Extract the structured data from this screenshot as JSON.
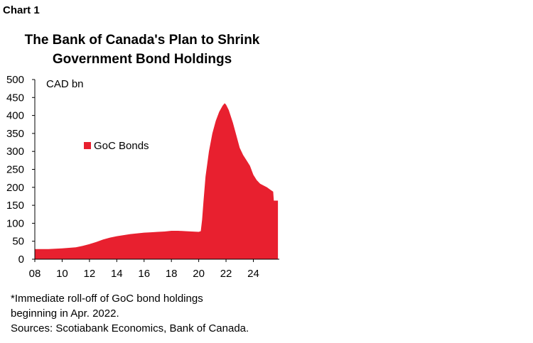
{
  "chart_label": "Chart 1",
  "chart_data": {
    "type": "area",
    "title": [
      "The Bank of Canada's Plan to Shrink",
      "Government Bond Holdings"
    ],
    "unit_label": "CAD bn",
    "xlabel": "",
    "ylabel": "",
    "ylim": [
      0,
      500
    ],
    "yticks": [
      0,
      50,
      100,
      150,
      200,
      250,
      300,
      350,
      400,
      450,
      500
    ],
    "xlim": [
      2008,
      2025.9
    ],
    "xticks": [
      "08",
      "10",
      "12",
      "14",
      "16",
      "18",
      "20",
      "22",
      "24"
    ],
    "xtick_values": [
      2008,
      2010,
      2012,
      2014,
      2016,
      2018,
      2020,
      2022,
      2024
    ],
    "grid": false,
    "legend": {
      "position": "left-middle",
      "entries": [
        "GoC Bonds"
      ]
    },
    "series": [
      {
        "name": "GoC Bonds",
        "color": "#e8202f",
        "x": [
          2008.0,
          2009.0,
          2010.0,
          2011.0,
          2011.5,
          2012.0,
          2012.5,
          2013.0,
          2013.5,
          2014.0,
          2014.5,
          2015.0,
          2015.5,
          2016.0,
          2016.5,
          2017.0,
          2017.5,
          2018.0,
          2018.5,
          2019.0,
          2019.5,
          2020.0,
          2020.15,
          2020.25,
          2020.35,
          2020.5,
          2020.75,
          2021.0,
          2021.25,
          2021.5,
          2021.75,
          2021.9,
          2022.0,
          2022.2,
          2022.5,
          2022.75,
          2023.0,
          2023.25,
          2023.5,
          2023.75,
          2024.0,
          2024.25,
          2024.5,
          2024.75,
          2025.0,
          2025.25,
          2025.45,
          2025.5,
          2025.8
        ],
        "y": [
          28,
          28,
          30,
          33,
          37,
          42,
          48,
          55,
          60,
          64,
          67,
          70,
          72,
          74,
          75,
          76,
          77,
          79,
          79,
          78,
          77,
          76,
          78,
          110,
          160,
          230,
          300,
          350,
          385,
          410,
          427,
          434,
          430,
          415,
          380,
          345,
          310,
          290,
          275,
          260,
          235,
          220,
          210,
          205,
          200,
          193,
          188,
          163,
          163
        ]
      }
    ]
  },
  "notes": [
    "*Immediate roll-off of GoC bond holdings",
    "beginning in Apr. 2022.",
    "Sources: Scotiabank Economics, Bank of Canada."
  ]
}
